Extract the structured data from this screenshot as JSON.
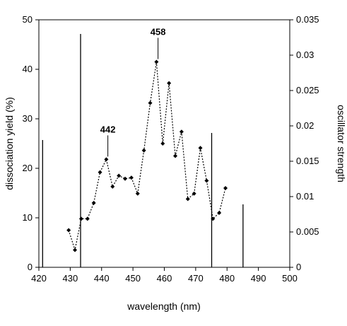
{
  "chart_data": {
    "type": "scatter",
    "xlabel": "wavelength (nm)",
    "ylabel": "dissociation yield (%)",
    "y2label": "oscillator strength",
    "xlim": [
      420,
      500
    ],
    "ylim": [
      0,
      50
    ],
    "y2lim": [
      0,
      0.035
    ],
    "xticks": [
      "420",
      "430",
      "440",
      "450",
      "460",
      "470",
      "480",
      "490",
      "500"
    ],
    "yticks": [
      "0",
      "10",
      "20",
      "30",
      "40",
      "50"
    ],
    "y2ticks": [
      "0",
      "0.005",
      "0.01",
      "0.015",
      "0.02",
      "0.025",
      "0.03",
      "0.035"
    ],
    "grid": false,
    "series": [
      {
        "kind": "dotted-line-with-diamond-markers",
        "axis": "left",
        "color": "#000000",
        "x": [
          429.5,
          431.5,
          433.5,
          435.5,
          437.5,
          439.5,
          441.5,
          443.5,
          445.5,
          447.5,
          449.5,
          451.5,
          453.5,
          455.5,
          457.5,
          459.5,
          461.5,
          463.5,
          465.5,
          467.5,
          469.5,
          471.5,
          473.5,
          475.5,
          477.5,
          479.5
        ],
        "y": [
          7.5,
          3.5,
          9.8,
          9.8,
          13,
          19.2,
          21.8,
          16.3,
          18.5,
          17.9,
          18.1,
          14.9,
          23.6,
          33.2,
          41.5,
          25,
          37.2,
          22.5,
          27.4,
          13.8,
          14.9,
          24.1,
          17.5,
          9.8,
          11,
          16
        ]
      },
      {
        "kind": "stick-spectrum",
        "axis": "right",
        "color": "#000000",
        "x": [
          421.2,
          433.3,
          475.1,
          485.1
        ],
        "y": [
          0.018,
          0.033,
          0.019,
          0.0089
        ]
      }
    ],
    "annotations": [
      {
        "text": "442",
        "x": 442,
        "y": 21.8
      },
      {
        "text": "458",
        "x": 458,
        "y": 41.5
      }
    ]
  }
}
